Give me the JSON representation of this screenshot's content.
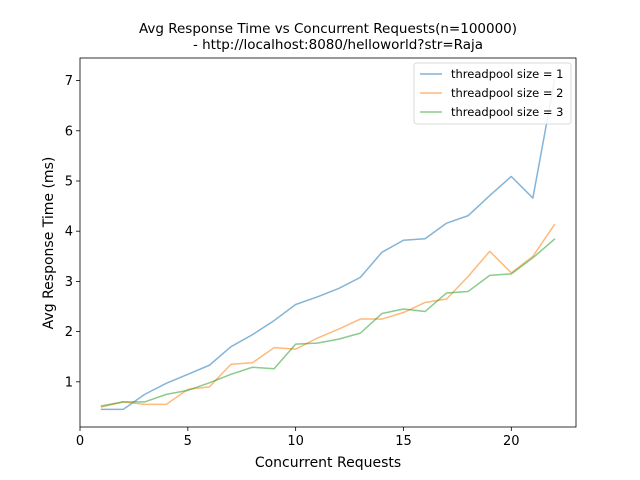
{
  "chart_data": {
    "type": "line",
    "title_line1": "Avg Response Time vs Concurrent Requests(n=100000)",
    "title_line2": "- http://localhost:8080/helloworld?str=Raja",
    "xlabel": "Concurrent Requests",
    "ylabel": "Avg Response Time (ms)",
    "xlim": [
      0,
      23
    ],
    "ylim": [
      0.1,
      7.45
    ],
    "xticks": [
      0,
      5,
      10,
      15,
      20
    ],
    "yticks": [
      1,
      2,
      3,
      4,
      5,
      6,
      7
    ],
    "grid": false,
    "legend_position": "top-right",
    "x": [
      1,
      2,
      3,
      4,
      5,
      6,
      7,
      8,
      9,
      10,
      11,
      12,
      13,
      14,
      15,
      16,
      17,
      18,
      19,
      20,
      21,
      22
    ],
    "series": [
      {
        "name": "threadpool size = 1",
        "color": "#1f77b4",
        "values": [
          0.45,
          0.45,
          0.75,
          0.97,
          1.15,
          1.33,
          1.7,
          1.94,
          2.22,
          2.54,
          2.69,
          2.86,
          3.08,
          3.58,
          3.82,
          3.85,
          4.16,
          4.31,
          4.71,
          5.09,
          4.66,
          7.0
        ]
      },
      {
        "name": "threadpool size = 2",
        "color": "#ff7f0e",
        "values": [
          0.5,
          0.6,
          0.55,
          0.55,
          0.85,
          0.9,
          1.35,
          1.38,
          1.68,
          1.65,
          1.87,
          2.05,
          2.25,
          2.25,
          2.38,
          2.58,
          2.65,
          3.1,
          3.6,
          3.17,
          3.5,
          4.13
        ]
      },
      {
        "name": "threadpool size = 3",
        "color": "#2ca02c",
        "values": [
          0.52,
          0.6,
          0.6,
          0.75,
          0.83,
          0.98,
          1.15,
          1.29,
          1.26,
          1.75,
          1.77,
          1.85,
          1.97,
          2.36,
          2.45,
          2.4,
          2.77,
          2.8,
          3.12,
          3.15,
          3.47,
          3.84
        ]
      }
    ]
  }
}
